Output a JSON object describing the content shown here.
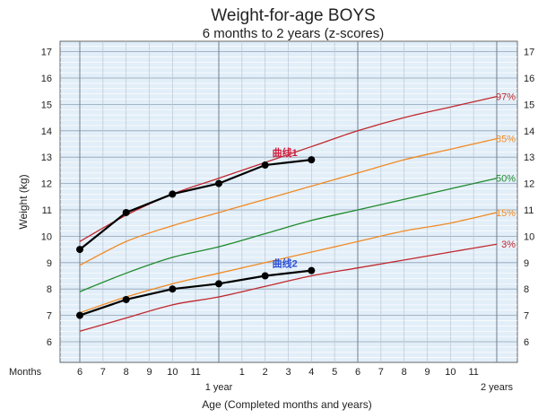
{
  "chart_data": {
    "type": "line",
    "title": "Weight-for-age  BOYS",
    "subtitle": "6 months to 2 years (z-scores)",
    "ylabel": "Weight (kg)",
    "xlabel": "Age (Completed months and years)",
    "months_label": "Months",
    "ylim": [
      5.2,
      17.5
    ],
    "xlim": [
      6,
      24
    ],
    "y_ticks": [
      6,
      7,
      8,
      9,
      10,
      11,
      12,
      13,
      14,
      15,
      16,
      17
    ],
    "x_ticks": [
      {
        "x": 6,
        "label": "6"
      },
      {
        "x": 7,
        "label": "7"
      },
      {
        "x": 8,
        "label": "8"
      },
      {
        "x": 9,
        "label": "9"
      },
      {
        "x": 10,
        "label": "10"
      },
      {
        "x": 11,
        "label": "11"
      },
      {
        "x": 13,
        "label": "1"
      },
      {
        "x": 14,
        "label": "2"
      },
      {
        "x": 15,
        "label": "3"
      },
      {
        "x": 16,
        "label": "4"
      },
      {
        "x": 17,
        "label": "5"
      },
      {
        "x": 18,
        "label": "6"
      },
      {
        "x": 19,
        "label": "7"
      },
      {
        "x": 20,
        "label": "8"
      },
      {
        "x": 21,
        "label": "9"
      },
      {
        "x": 22,
        "label": "10"
      },
      {
        "x": 23,
        "label": "11"
      }
    ],
    "year_labels": [
      {
        "x": 12,
        "label": "1 year"
      },
      {
        "x": 24,
        "label": "2 years"
      }
    ],
    "grid": true,
    "x": [
      6,
      8,
      10,
      12,
      14,
      16,
      18,
      20,
      22,
      24
    ],
    "series": [
      {
        "name": "97%",
        "color": "#c0282d",
        "values": [
          9.8,
          10.8,
          11.6,
          12.2,
          12.8,
          13.4,
          14.0,
          14.5,
          14.9,
          15.3
        ]
      },
      {
        "name": "85%",
        "color": "#f08a24",
        "values": [
          8.9,
          9.8,
          10.4,
          10.9,
          11.4,
          11.9,
          12.4,
          12.9,
          13.3,
          13.7
        ]
      },
      {
        "name": "50%",
        "color": "#1f8a2c",
        "values": [
          7.9,
          8.6,
          9.2,
          9.6,
          10.1,
          10.6,
          11.0,
          11.4,
          11.8,
          12.2
        ]
      },
      {
        "name": "15%",
        "color": "#f08a24",
        "values": [
          7.1,
          7.7,
          8.2,
          8.6,
          9.0,
          9.4,
          9.8,
          10.2,
          10.5,
          10.9
        ]
      },
      {
        "name": "3%",
        "color": "#c0282d",
        "values": [
          6.4,
          6.9,
          7.4,
          7.7,
          8.1,
          8.5,
          8.8,
          9.1,
          9.4,
          9.7
        ]
      }
    ],
    "children": [
      {
        "name": "曲线1",
        "color": "#d11a3a",
        "points": [
          [
            6,
            9.5
          ],
          [
            8,
            10.9
          ],
          [
            10,
            11.6
          ],
          [
            12,
            12.0
          ],
          [
            14,
            12.7
          ],
          [
            16,
            12.9
          ]
        ]
      },
      {
        "name": "曲线2",
        "color": "#2a4fd8",
        "points": [
          [
            6,
            7.0
          ],
          [
            8,
            7.6
          ],
          [
            10,
            8.0
          ],
          [
            12,
            8.2
          ],
          [
            14,
            8.5
          ],
          [
            16,
            8.7
          ]
        ]
      }
    ]
  }
}
